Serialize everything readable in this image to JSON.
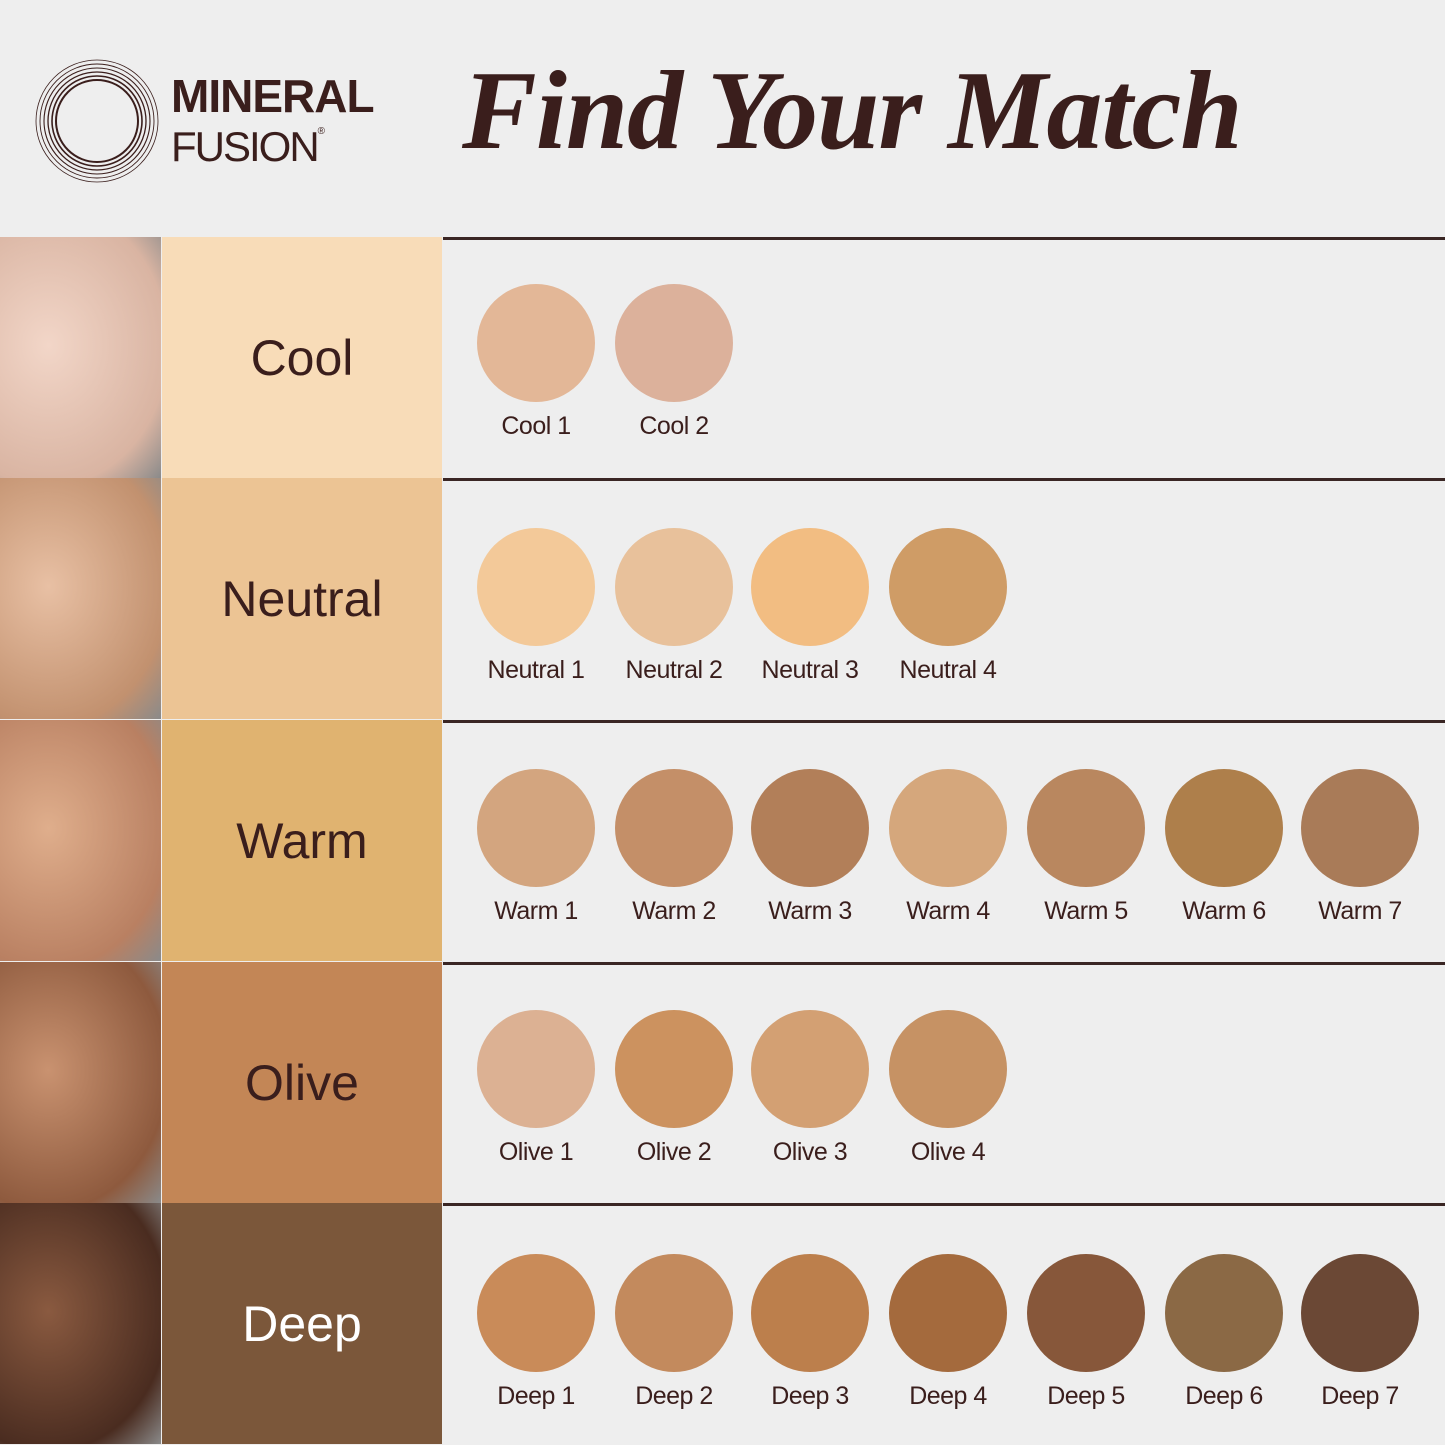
{
  "brand": {
    "line1": "MINERAL",
    "line2": "FUSION",
    "reg": "®"
  },
  "title": "Find Your Match",
  "rows": [
    {
      "tone": "Cool",
      "bg": "#f8dcb8",
      "text": "#3a1e1c",
      "skin": [
        "#f2d6c8",
        "#d9b4a2"
      ],
      "shades": [
        {
          "name": "Cool 1",
          "color": "#e3b797"
        },
        {
          "name": "Cool 2",
          "color": "#dcb19b"
        }
      ]
    },
    {
      "tone": "Neutral",
      "bg": "#ecc494",
      "text": "#3a1e1c",
      "skin": [
        "#e8c0a4",
        "#c2916f"
      ],
      "shades": [
        {
          "name": "Neutral 1",
          "color": "#f3c999"
        },
        {
          "name": "Neutral 2",
          "color": "#e8c19b"
        },
        {
          "name": "Neutral 3",
          "color": "#f2bd82"
        },
        {
          "name": "Neutral 4",
          "color": "#cf9c66"
        }
      ]
    },
    {
      "tone": "Warm",
      "bg": "#e0b370",
      "text": "#3a1e1c",
      "skin": [
        "#dfae8c",
        "#b98062"
      ],
      " shades": null,
      "shades": [
        {
          "name": "Warm 1",
          "color": "#d3a57f"
        },
        {
          "name": "Warm 2",
          "color": "#c48f68"
        },
        {
          "name": "Warm 3",
          "color": "#b27f59"
        },
        {
          "name": "Warm 4",
          "color": "#d5a77c"
        },
        {
          "name": "Warm 5",
          "color": "#b9875f"
        },
        {
          "name": "Warm 6",
          "color": "#ae7f4b"
        },
        {
          "name": "Warm 7",
          "color": "#a97b58"
        }
      ]
    },
    {
      "tone": "Olive",
      "bg": "#c38656",
      "text": "#3a1e1c",
      "skin": [
        "#c99270",
        "#8e5a3e"
      ],
      "shades": [
        {
          "name": "Olive 1",
          "color": "#dcb193"
        },
        {
          "name": "Olive 2",
          "color": "#cc925f"
        },
        {
          "name": "Olive 3",
          "color": "#d3a073"
        },
        {
          "name": "Olive 4",
          "color": "#c69264"
        }
      ]
    },
    {
      "tone": "Deep",
      "bg": "#7b573a",
      "text": "#ffffff",
      "skin": [
        "#8a5a40",
        "#4a2c20"
      ],
      "shades": [
        {
          "name": "Deep 1",
          "color": "#c98b59"
        },
        {
          "name": "Deep 2",
          "color": "#c38a5d"
        },
        {
          "name": "Deep 3",
          "color": "#bc7f4c"
        },
        {
          "name": "Deep 4",
          "color": "#a46a3d"
        },
        {
          "name": "Deep 5",
          "color": "#87573a"
        },
        {
          "name": "Deep 6",
          "color": "#8b6945"
        },
        {
          "name": "Deep 7",
          "color": "#6b4835"
        }
      ]
    }
  ]
}
